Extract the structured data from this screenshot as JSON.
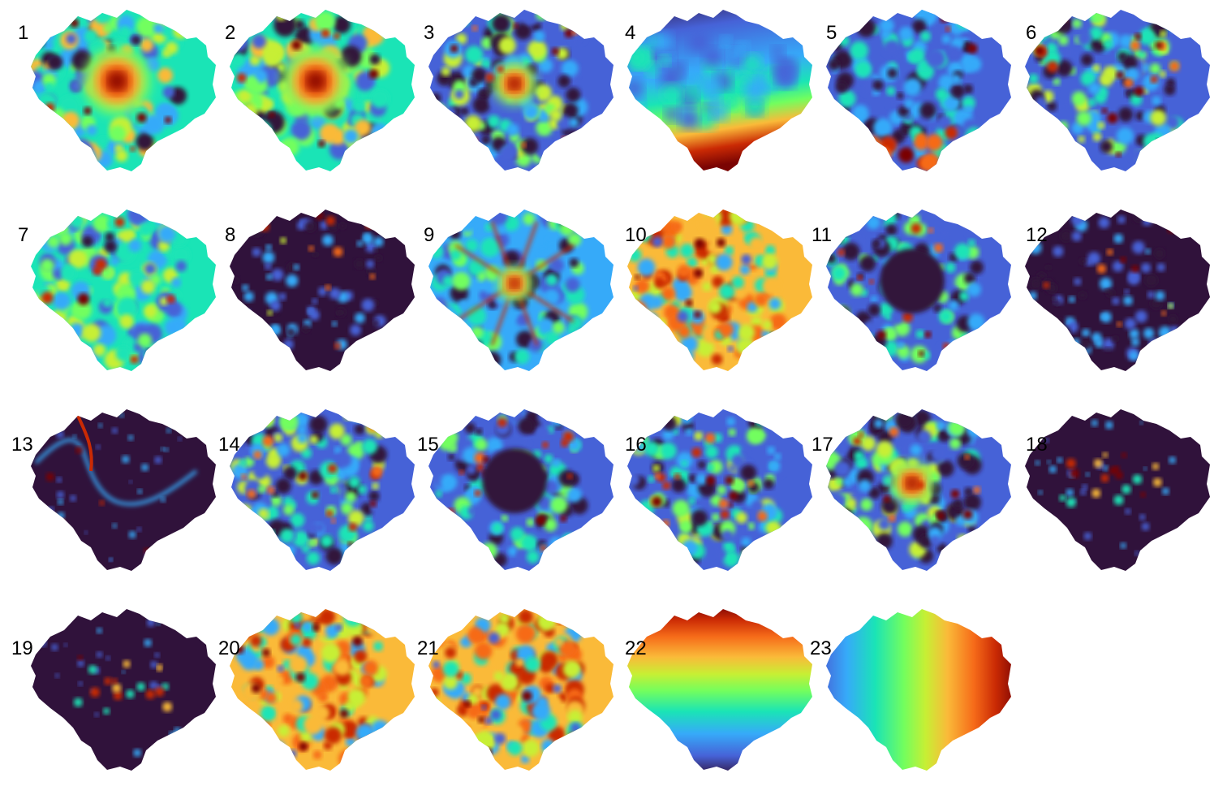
{
  "figure": {
    "panels": [
      {
        "label": "1",
        "pattern": "central-hotspot"
      },
      {
        "label": "2",
        "pattern": "central-hotspot"
      },
      {
        "label": "3",
        "pattern": "central-hotspot-moderate"
      },
      {
        "label": "4",
        "pattern": "north-south-gradient-smooth"
      },
      {
        "label": "5",
        "pattern": "low-with-south-hotspot"
      },
      {
        "label": "6",
        "pattern": "scattered-patches"
      },
      {
        "label": "7",
        "pattern": "mid-level-mixed"
      },
      {
        "label": "8",
        "pattern": "mostly-low-sparse"
      },
      {
        "label": "9",
        "pattern": "radial-network"
      },
      {
        "label": "10",
        "pattern": "mostly-high"
      },
      {
        "label": "11",
        "pattern": "low-core-ring"
      },
      {
        "label": "12",
        "pattern": "mostly-low-sparse"
      },
      {
        "label": "13",
        "pattern": "river-lines"
      },
      {
        "label": "14",
        "pattern": "scattered-patches"
      },
      {
        "label": "15",
        "pattern": "low-core-ring"
      },
      {
        "label": "16",
        "pattern": "scattered-patches"
      },
      {
        "label": "17",
        "pattern": "central-hotspot-moderate"
      },
      {
        "label": "18",
        "pattern": "sparse-central-cluster"
      },
      {
        "label": "19",
        "pattern": "sparse-central-cluster"
      },
      {
        "label": "20",
        "pattern": "mostly-high"
      },
      {
        "label": "21",
        "pattern": "mostly-high"
      },
      {
        "label": "22",
        "pattern": "vertical-gradient"
      },
      {
        "label": "23",
        "pattern": "horizontal-gradient"
      }
    ],
    "colormap": [
      "#30123b",
      "#4662d7",
      "#36aaf9",
      "#1ae4b6",
      "#72fe5e",
      "#c7ef34",
      "#faba39",
      "#f66b19",
      "#ca2a04",
      "#7a0403"
    ]
  }
}
